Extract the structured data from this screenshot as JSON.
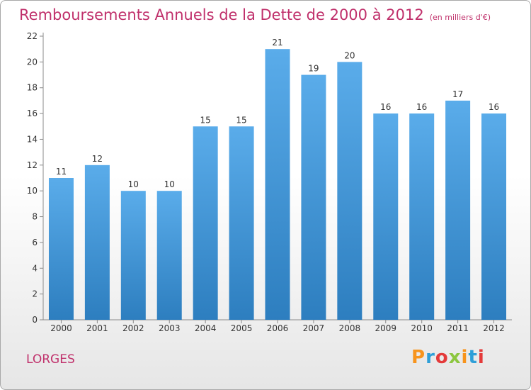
{
  "header": {
    "title": "Remboursements Annuels de la Dette de 2000 à 2012",
    "unit": "(en milliers d'€)"
  },
  "footer": {
    "commune": "LORGES",
    "logo_text": "Proxiti"
  },
  "colors": {
    "title": "#c0306b",
    "bar_top": "#5aacea",
    "bar_bottom": "#2d7ebf",
    "logo_letters": [
      "#f7941d",
      "#2e9fd8",
      "#e43a3a",
      "#8cc63f",
      "#f7941d",
      "#2e9fd8",
      "#e43a3a"
    ]
  },
  "chart_data": {
    "type": "bar",
    "categories": [
      "2000",
      "2001",
      "2002",
      "2003",
      "2004",
      "2005",
      "2006",
      "2007",
      "2008",
      "2009",
      "2010",
      "2011",
      "2012"
    ],
    "values": [
      11,
      12,
      10,
      10,
      15,
      15,
      21,
      19,
      20,
      16,
      16,
      17,
      16
    ],
    "ylim": [
      0,
      22
    ],
    "yticks": [
      0,
      2,
      4,
      6,
      8,
      10,
      12,
      14,
      16,
      18,
      20,
      22
    ],
    "grid": false,
    "data_labels": true
  }
}
